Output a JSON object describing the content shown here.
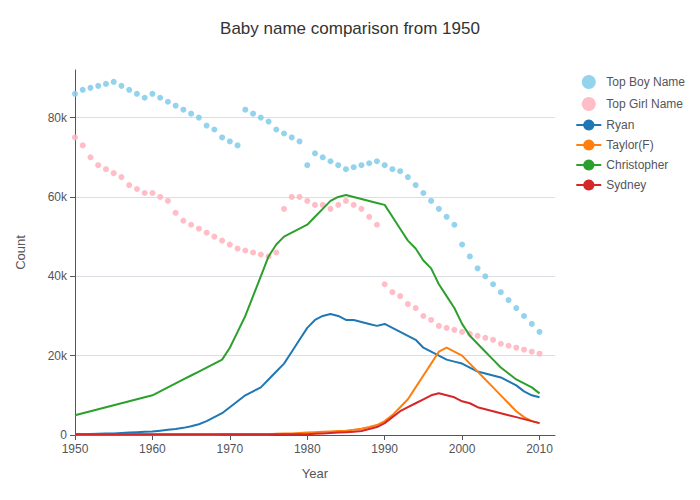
{
  "chart_data": {
    "type": "line",
    "title": "Baby name comparison from 1950",
    "xlabel": "Year",
    "ylabel": "Count",
    "x": [
      1950,
      1951,
      1952,
      1953,
      1954,
      1955,
      1956,
      1957,
      1958,
      1959,
      1960,
      1961,
      1962,
      1963,
      1964,
      1965,
      1966,
      1967,
      1968,
      1969,
      1970,
      1971,
      1972,
      1973,
      1974,
      1975,
      1976,
      1977,
      1978,
      1979,
      1980,
      1981,
      1982,
      1983,
      1984,
      1985,
      1986,
      1987,
      1988,
      1989,
      1990,
      1991,
      1992,
      1993,
      1994,
      1995,
      1996,
      1997,
      1998,
      1999,
      2000,
      2001,
      2002,
      2003,
      2004,
      2005,
      2006,
      2007,
      2008,
      2009,
      2010
    ],
    "series": [
      {
        "name": "Top Boy Name",
        "type": "scatter",
        "marker": "circle",
        "color": "#87ceeb",
        "values": [
          86000,
          87000,
          87500,
          88000,
          88500,
          89000,
          88000,
          87000,
          86000,
          85000,
          86000,
          85000,
          84000,
          83000,
          82000,
          81000,
          80000,
          78000,
          77000,
          75000,
          74000,
          73000,
          82000,
          81000,
          80000,
          79000,
          77000,
          76000,
          75000,
          74000,
          68000,
          71000,
          70000,
          69000,
          68000,
          67000,
          67500,
          68000,
          68500,
          69000,
          68000,
          67000,
          66500,
          65000,
          63000,
          61000,
          59000,
          57000,
          55000,
          53000,
          48000,
          45000,
          42000,
          40000,
          38000,
          36000,
          34000,
          32000,
          30000,
          28000,
          26000
        ]
      },
      {
        "name": "Top Girl Name",
        "type": "scatter",
        "marker": "circle",
        "color": "#ffb6c1",
        "values": [
          75000,
          73000,
          70000,
          68000,
          67000,
          66000,
          65000,
          63000,
          62000,
          61000,
          61000,
          60000,
          59000,
          56000,
          54000,
          53000,
          52000,
          51000,
          50000,
          49000,
          48000,
          47000,
          46500,
          46000,
          45500,
          45000,
          46000,
          57000,
          60000,
          60000,
          59000,
          58000,
          58000,
          57000,
          58000,
          59000,
          58000,
          57000,
          55000,
          53000,
          38000,
          36000,
          35000,
          33000,
          32000,
          30000,
          29000,
          27500,
          27000,
          26500,
          26000,
          25500,
          25000,
          24500,
          24000,
          23000,
          22500,
          22000,
          21500,
          21000,
          20500
        ]
      },
      {
        "name": "Ryan",
        "type": "line",
        "line_style": "solid",
        "color": "#1f77b4",
        "values": [
          200,
          200,
          250,
          300,
          350,
          400,
          500,
          600,
          700,
          800,
          900,
          1100,
          1300,
          1500,
          1800,
          2200,
          2700,
          3500,
          4500,
          5500,
          7000,
          8500,
          10000,
          11000,
          12000,
          14000,
          16000,
          18000,
          21000,
          24000,
          27000,
          29000,
          30000,
          30500,
          30000,
          29000,
          29000,
          28500,
          28000,
          27500,
          28000,
          27000,
          26000,
          25000,
          24000,
          22000,
          21000,
          20000,
          19000,
          18500,
          18000,
          17000,
          16000,
          15500,
          15000,
          14500,
          13500,
          12500,
          11000,
          10000,
          9500
        ]
      },
      {
        "name": "Taylor(F)",
        "type": "line",
        "line_style": "solid",
        "color": "#ff7f0e",
        "values": [
          100,
          100,
          100,
          100,
          100,
          100,
          100,
          100,
          100,
          100,
          100,
          100,
          100,
          100,
          100,
          100,
          100,
          100,
          150,
          200,
          200,
          200,
          200,
          200,
          200,
          200,
          300,
          350,
          400,
          500,
          600,
          700,
          800,
          900,
          1000,
          1100,
          1300,
          1600,
          2000,
          2500,
          3500,
          5000,
          7000,
          9000,
          12000,
          15000,
          18000,
          21000,
          22000,
          21000,
          20000,
          18000,
          16000,
          14000,
          12000,
          10000,
          8000,
          6000,
          4500,
          3500,
          3000
        ]
      },
      {
        "name": "Christopher",
        "type": "line",
        "line_style": "solid",
        "color": "#2ca02c",
        "values": [
          5000,
          5500,
          6000,
          6500,
          7000,
          7500,
          8000,
          8500,
          9000,
          9500,
          10000,
          11000,
          12000,
          13000,
          14000,
          15000,
          16000,
          17000,
          18000,
          19000,
          22000,
          26000,
          30000,
          35000,
          40000,
          45000,
          48000,
          50000,
          51000,
          52000,
          53000,
          55000,
          57000,
          59000,
          60000,
          60500,
          60000,
          59500,
          59000,
          58500,
          58000,
          55000,
          52000,
          49000,
          47000,
          44000,
          42000,
          38000,
          35000,
          32000,
          28000,
          25000,
          23000,
          21000,
          19000,
          17000,
          15500,
          14000,
          13000,
          12000,
          10500
        ]
      },
      {
        "name": "Sydney",
        "type": "line",
        "line_style": "solid",
        "color": "#d62728",
        "values": [
          200,
          200,
          200,
          200,
          200,
          200,
          200,
          200,
          200,
          200,
          200,
          200,
          200,
          200,
          200,
          200,
          200,
          200,
          200,
          200,
          200,
          200,
          200,
          200,
          200,
          200,
          200,
          200,
          200,
          200,
          200,
          300,
          400,
          500,
          600,
          700,
          800,
          1000,
          1500,
          2000,
          3000,
          4500,
          6000,
          7000,
          8000,
          9000,
          10000,
          10500,
          10000,
          9500,
          8500,
          8000,
          7000,
          6500,
          6000,
          5500,
          5000,
          4500,
          4000,
          3500,
          3000
        ]
      }
    ],
    "xlim": [
      1950,
      2012
    ],
    "xticks": [
      1950,
      1960,
      1970,
      1980,
      1990,
      2000,
      2010
    ],
    "ylim": [
      0,
      92000
    ],
    "yticks": [
      0,
      {
        "value": 20000,
        "label": "20k"
      },
      {
        "value": 40000,
        "label": "40k"
      },
      {
        "value": 60000,
        "label": "60k"
      },
      {
        "value": 80000,
        "label": "80k"
      }
    ],
    "grid": true,
    "legend": "upper right"
  }
}
